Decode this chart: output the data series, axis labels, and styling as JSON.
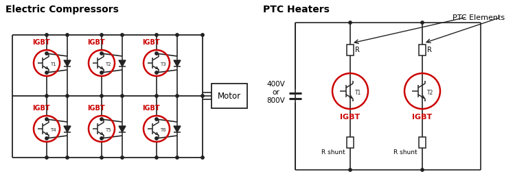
{
  "title_left": "Electric Compressors",
  "title_right": "PTC Heaters",
  "title_fontsize": 10,
  "title_fontweight": "bold",
  "igbt_color": "#cc0000",
  "line_color": "#222222",
  "text_color": "#000000",
  "bg_color": "#ffffff",
  "motor_label": "Motor",
  "voltage_label": "400V\nor\n800V",
  "ptc_label": "PTC Elements",
  "r_shunt_label": "R shunt",
  "igbt_label": "IGBT",
  "r_label": "R"
}
